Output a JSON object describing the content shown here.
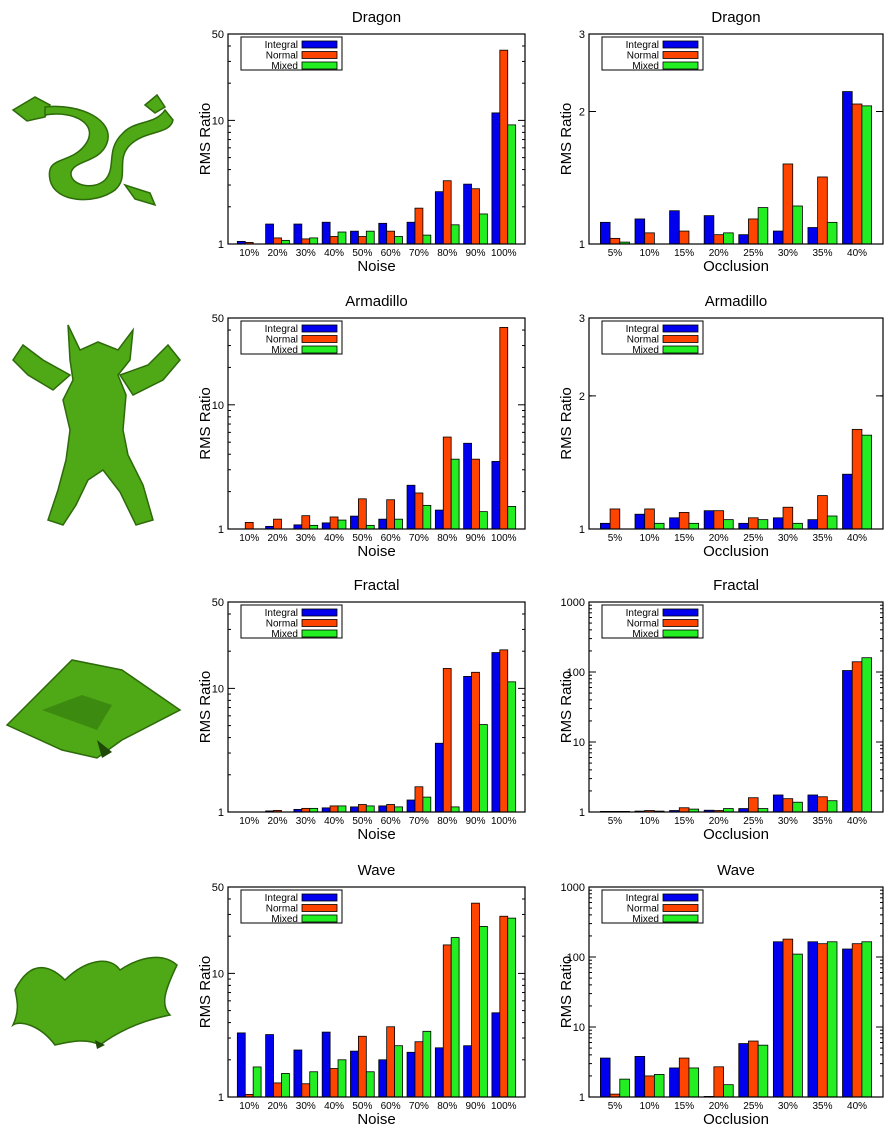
{
  "colors": {
    "integral": "#0000ee",
    "normal": "#ff4400",
    "mixed": "#22ee22",
    "shape": "#4fa815",
    "shape_dark": "#2c6a0a"
  },
  "thumbnails": [
    {
      "icon": "dragon-model-icon"
    },
    {
      "icon": "armadillo-model-icon"
    },
    {
      "icon": "fractal-terrain-icon"
    },
    {
      "icon": "wave-surface-icon"
    }
  ],
  "chart_data": [
    {
      "type": "bar",
      "title": "Dragon",
      "xlabel": "Noise",
      "ylabel": "RMS Ratio",
      "yscale": "log",
      "ylim": [
        1,
        50
      ],
      "yticks": [
        1,
        10,
        50
      ],
      "grid": false,
      "legend": "top-left",
      "categories": [
        "10%",
        "20%",
        "30%",
        "40%",
        "50%",
        "60%",
        "70%",
        "80%",
        "90%",
        "100%"
      ],
      "series": [
        {
          "name": "Integral",
          "values": [
            1.05,
            1.45,
            1.45,
            1.5,
            1.27,
            1.47,
            1.5,
            2.65,
            3.05,
            11.5
          ]
        },
        {
          "name": "Normal",
          "values": [
            1.03,
            1.12,
            1.1,
            1.15,
            1.15,
            1.27,
            1.95,
            3.25,
            2.8,
            37
          ]
        },
        {
          "name": "Mixed",
          "values": [
            1.0,
            1.07,
            1.12,
            1.25,
            1.27,
            1.15,
            1.18,
            1.43,
            1.75,
            9.2
          ]
        }
      ]
    },
    {
      "type": "bar",
      "title": "Dragon",
      "xlabel": "Occlusion",
      "ylabel": "RMS Ratio",
      "yscale": "log",
      "ylim": [
        1,
        3
      ],
      "yticks": [
        1,
        2,
        3
      ],
      "grid": false,
      "legend": "top-left",
      "categories": [
        "5%",
        "10%",
        "15%",
        "20%",
        "25%",
        "30%",
        "35%",
        "40%"
      ],
      "series": [
        {
          "name": "Integral",
          "values": [
            1.12,
            1.14,
            1.19,
            1.16,
            1.05,
            1.07,
            1.09,
            2.22
          ]
        },
        {
          "name": "Normal",
          "values": [
            1.03,
            1.06,
            1.07,
            1.05,
            1.14,
            1.52,
            1.42,
            2.08
          ]
        },
        {
          "name": "Mixed",
          "values": [
            1.01,
            1.0,
            1.0,
            1.06,
            1.21,
            1.22,
            1.12,
            2.06
          ]
        }
      ]
    },
    {
      "type": "bar",
      "title": "Armadillo",
      "xlabel": "Noise",
      "ylabel": "RMS Ratio",
      "yscale": "log",
      "ylim": [
        1,
        50
      ],
      "yticks": [
        1,
        10,
        50
      ],
      "grid": false,
      "legend": "top-left",
      "categories": [
        "10%",
        "20%",
        "30%",
        "40%",
        "50%",
        "60%",
        "70%",
        "80%",
        "90%",
        "100%"
      ],
      "series": [
        {
          "name": "Integral",
          "values": [
            1.0,
            1.05,
            1.08,
            1.12,
            1.27,
            1.2,
            2.25,
            1.42,
            4.9,
            3.5
          ]
        },
        {
          "name": "Normal",
          "values": [
            1.13,
            1.2,
            1.28,
            1.25,
            1.75,
            1.72,
            1.95,
            5.5,
            3.65,
            42
          ]
        },
        {
          "name": "Mixed",
          "values": [
            1.0,
            1.0,
            1.07,
            1.18,
            1.07,
            1.2,
            1.55,
            3.65,
            1.38,
            1.52
          ]
        }
      ]
    },
    {
      "type": "bar",
      "title": "Armadillo",
      "xlabel": "Occlusion",
      "ylabel": "RMS Ratio",
      "yscale": "log",
      "ylim": [
        1,
        3
      ],
      "yticks": [
        1,
        2,
        3
      ],
      "grid": false,
      "legend": "top-left",
      "categories": [
        "5%",
        "10%",
        "15%",
        "20%",
        "25%",
        "30%",
        "35%",
        "40%"
      ],
      "series": [
        {
          "name": "Integral",
          "values": [
            1.03,
            1.08,
            1.06,
            1.1,
            1.03,
            1.06,
            1.05,
            1.33
          ]
        },
        {
          "name": "Normal",
          "values": [
            1.11,
            1.11,
            1.09,
            1.1,
            1.06,
            1.12,
            1.19,
            1.68
          ]
        },
        {
          "name": "Mixed",
          "values": [
            1.0,
            1.03,
            1.03,
            1.05,
            1.05,
            1.03,
            1.07,
            1.63
          ]
        }
      ]
    },
    {
      "type": "bar",
      "title": "Fractal",
      "xlabel": "Noise",
      "ylabel": "RMS Ratio",
      "yscale": "log",
      "ylim": [
        1,
        50
      ],
      "yticks": [
        1,
        10,
        50
      ],
      "grid": false,
      "legend": "top-left",
      "categories": [
        "10%",
        "20%",
        "30%",
        "40%",
        "50%",
        "60%",
        "70%",
        "80%",
        "90%",
        "100%"
      ],
      "series": [
        {
          "name": "Integral",
          "values": [
            1.0,
            1.02,
            1.05,
            1.08,
            1.1,
            1.12,
            1.25,
            3.6,
            12.5,
            19.5
          ]
        },
        {
          "name": "Normal",
          "values": [
            1.0,
            1.03,
            1.07,
            1.12,
            1.15,
            1.15,
            1.6,
            14.5,
            13.5,
            20.5
          ]
        },
        {
          "name": "Mixed",
          "values": [
            1.0,
            1.0,
            1.07,
            1.12,
            1.12,
            1.1,
            1.32,
            1.1,
            5.1,
            11.3
          ]
        }
      ]
    },
    {
      "type": "bar",
      "title": "Fractal",
      "xlabel": "Occlusion",
      "ylabel": "RMS Ratio",
      "yscale": "log",
      "ylim": [
        1,
        1000
      ],
      "yticks": [
        1,
        10,
        100,
        1000
      ],
      "grid": false,
      "legend": "top-left",
      "categories": [
        "5%",
        "10%",
        "15%",
        "20%",
        "25%",
        "30%",
        "35%",
        "40%"
      ],
      "series": [
        {
          "name": "Integral",
          "values": [
            1.02,
            1.03,
            1.05,
            1.06,
            1.12,
            1.75,
            1.75,
            105
          ]
        },
        {
          "name": "Normal",
          "values": [
            1.02,
            1.05,
            1.15,
            1.05,
            1.6,
            1.55,
            1.65,
            140
          ]
        },
        {
          "name": "Mixed",
          "values": [
            1.02,
            1.03,
            1.1,
            1.12,
            1.12,
            1.38,
            1.45,
            160
          ]
        }
      ]
    },
    {
      "type": "bar",
      "title": "Wave",
      "xlabel": "Noise",
      "ylabel": "RMS Ratio",
      "yscale": "log",
      "ylim": [
        1,
        50
      ],
      "yticks": [
        1,
        10,
        50
      ],
      "grid": false,
      "legend": "top-left",
      "categories": [
        "10%",
        "20%",
        "30%",
        "40%",
        "50%",
        "60%",
        "70%",
        "80%",
        "90%",
        "100%"
      ],
      "series": [
        {
          "name": "Integral",
          "values": [
            3.3,
            3.2,
            2.4,
            3.35,
            2.35,
            2.0,
            2.3,
            2.5,
            2.6,
            4.8
          ]
        },
        {
          "name": "Normal",
          "values": [
            1.05,
            1.3,
            1.28,
            1.7,
            3.1,
            3.7,
            2.8,
            17,
            37,
            29
          ]
        },
        {
          "name": "Mixed",
          "values": [
            1.75,
            1.55,
            1.6,
            2.0,
            1.6,
            2.6,
            3.4,
            19.5,
            24,
            28
          ]
        }
      ]
    },
    {
      "type": "bar",
      "title": "Wave",
      "xlabel": "Occlusion",
      "ylabel": "RMS Ratio",
      "yscale": "log",
      "ylim": [
        1,
        1000
      ],
      "yticks": [
        1,
        10,
        100,
        1000
      ],
      "grid": false,
      "legend": "top-left",
      "categories": [
        "5%",
        "10%",
        "15%",
        "20%",
        "25%",
        "30%",
        "35%",
        "40%"
      ],
      "series": [
        {
          "name": "Integral",
          "values": [
            3.6,
            3.8,
            2.6,
            1.02,
            5.8,
            165,
            165,
            130
          ]
        },
        {
          "name": "Normal",
          "values": [
            1.1,
            2.0,
            3.6,
            2.7,
            6.3,
            180,
            155,
            155
          ]
        },
        {
          "name": "Mixed",
          "values": [
            1.8,
            2.1,
            2.6,
            1.5,
            5.5,
            110,
            165,
            165
          ]
        }
      ]
    }
  ]
}
